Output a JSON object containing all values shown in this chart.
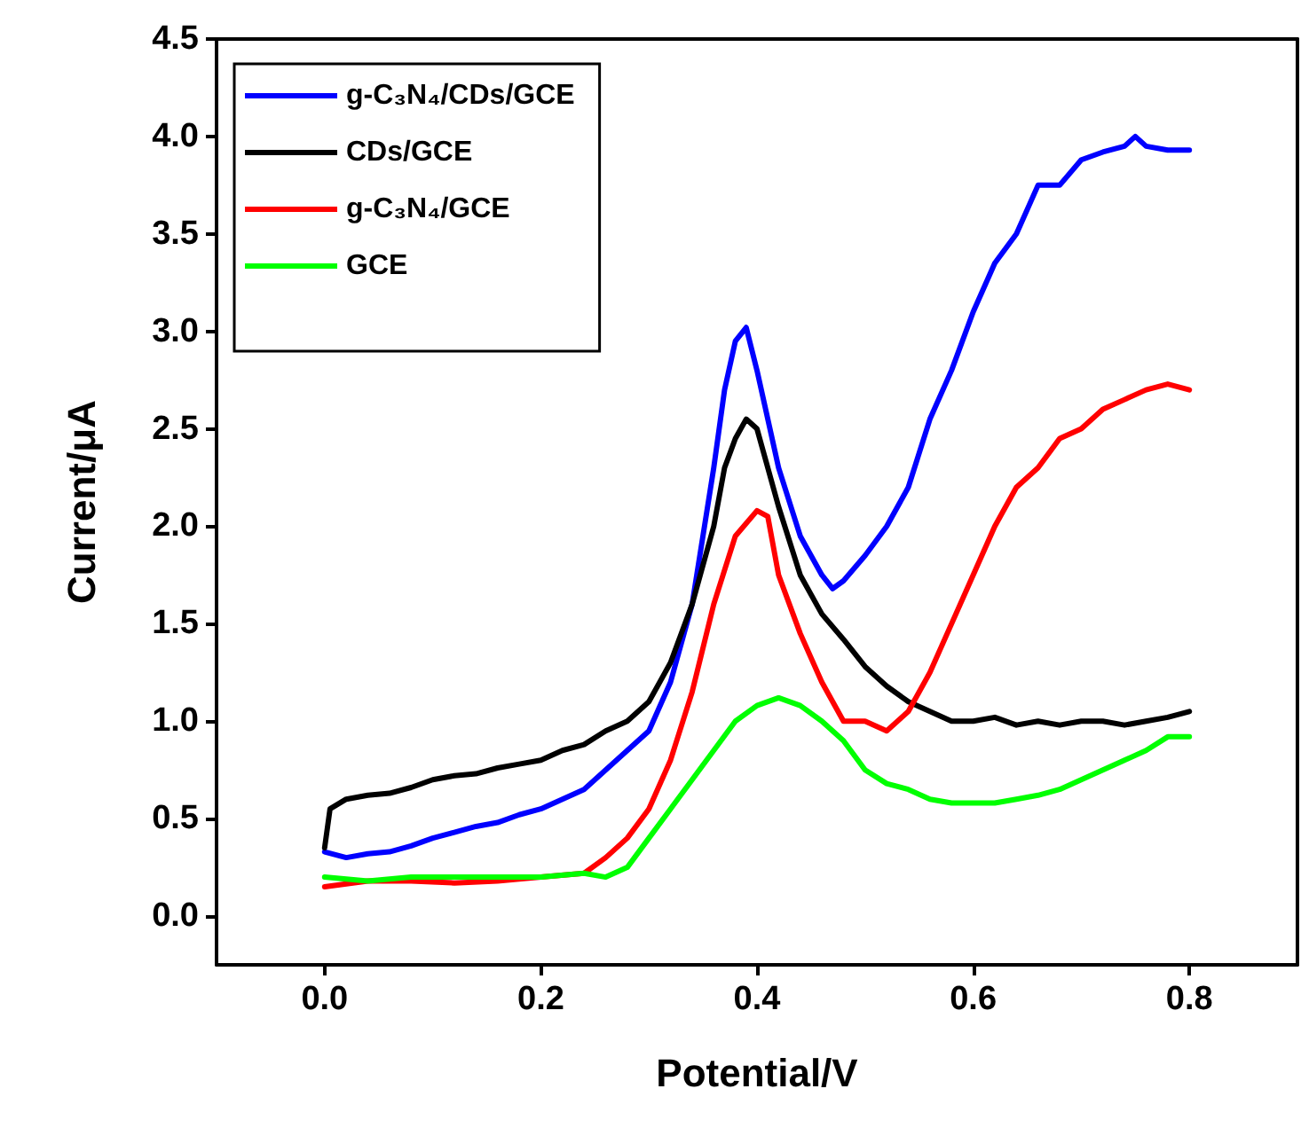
{
  "chart_data": {
    "type": "line",
    "xlabel": "Potential/V",
    "ylabel": "Current/μA",
    "xlim": [
      -0.1,
      0.9
    ],
    "ylim": [
      -0.25,
      4.5
    ],
    "xticks": [
      {
        "value": 0,
        "label": "0.0"
      },
      {
        "value": 0.2,
        "label": "0.2"
      },
      {
        "value": 0.4,
        "label": "0.4"
      },
      {
        "value": 0.6,
        "label": "0.6"
      },
      {
        "value": 0.8,
        "label": "0.8"
      }
    ],
    "yticks": [
      {
        "value": 0,
        "label": "0.0"
      },
      {
        "value": 0.5,
        "label": "0.5"
      },
      {
        "value": 1,
        "label": "1.0"
      },
      {
        "value": 1.5,
        "label": "1.5"
      },
      {
        "value": 2,
        "label": "2.0"
      },
      {
        "value": 2.5,
        "label": "2.5"
      },
      {
        "value": 3,
        "label": "3.0"
      },
      {
        "value": 3.5,
        "label": "3.5"
      },
      {
        "value": 4,
        "label": "4.0"
      },
      {
        "value": 4.5,
        "label": "4.5"
      }
    ],
    "grid": false,
    "legend": "top left",
    "marker": "none",
    "line_style": "solid",
    "series": [
      {
        "name": "g-C₃N₄/CDs/GCE",
        "color": "#0000ff",
        "x": [
          0,
          0.02,
          0.04,
          0.06,
          0.08,
          0.1,
          0.12,
          0.14,
          0.16,
          0.18,
          0.2,
          0.22,
          0.24,
          0.26,
          0.28,
          0.3,
          0.32,
          0.34,
          0.36,
          0.37,
          0.38,
          0.39,
          0.4,
          0.42,
          0.44,
          0.46,
          0.47,
          0.48,
          0.5,
          0.52,
          0.54,
          0.56,
          0.58,
          0.6,
          0.62,
          0.64,
          0.66,
          0.68,
          0.7,
          0.72,
          0.74,
          0.75,
          0.76,
          0.78,
          0.8
        ],
        "values": [
          0.33,
          0.3,
          0.32,
          0.33,
          0.36,
          0.4,
          0.43,
          0.46,
          0.48,
          0.52,
          0.55,
          0.6,
          0.65,
          0.75,
          0.85,
          0.95,
          1.2,
          1.6,
          2.3,
          2.7,
          2.95,
          3.02,
          2.8,
          2.3,
          1.95,
          1.75,
          1.68,
          1.72,
          1.85,
          2.0,
          2.2,
          2.55,
          2.8,
          3.1,
          3.35,
          3.5,
          3.75,
          3.75,
          3.88,
          3.92,
          3.95,
          4.0,
          3.95,
          3.93,
          3.93
        ]
      },
      {
        "name": "CDs/GCE",
        "color": "#000000",
        "x": [
          0,
          0.005,
          0.02,
          0.04,
          0.06,
          0.08,
          0.1,
          0.12,
          0.14,
          0.16,
          0.18,
          0.2,
          0.22,
          0.24,
          0.26,
          0.28,
          0.3,
          0.32,
          0.34,
          0.36,
          0.37,
          0.38,
          0.39,
          0.4,
          0.42,
          0.44,
          0.46,
          0.48,
          0.5,
          0.52,
          0.54,
          0.56,
          0.58,
          0.6,
          0.62,
          0.64,
          0.66,
          0.68,
          0.7,
          0.72,
          0.74,
          0.76,
          0.78,
          0.8
        ],
        "values": [
          0.35,
          0.55,
          0.6,
          0.62,
          0.63,
          0.66,
          0.7,
          0.72,
          0.73,
          0.76,
          0.78,
          0.8,
          0.85,
          0.88,
          0.95,
          1.0,
          1.1,
          1.3,
          1.6,
          2.0,
          2.3,
          2.45,
          2.55,
          2.5,
          2.1,
          1.75,
          1.55,
          1.42,
          1.28,
          1.18,
          1.1,
          1.05,
          1.0,
          1.0,
          1.02,
          0.98,
          1.0,
          0.98,
          1.0,
          1.0,
          0.98,
          1.0,
          1.02,
          1.05
        ]
      },
      {
        "name": "g-C₃N₄/GCE",
        "color": "#ff0000",
        "x": [
          0,
          0.04,
          0.08,
          0.12,
          0.16,
          0.2,
          0.24,
          0.26,
          0.28,
          0.3,
          0.32,
          0.34,
          0.36,
          0.38,
          0.4,
          0.41,
          0.42,
          0.44,
          0.46,
          0.48,
          0.5,
          0.52,
          0.54,
          0.56,
          0.58,
          0.6,
          0.62,
          0.64,
          0.66,
          0.68,
          0.7,
          0.72,
          0.74,
          0.76,
          0.78,
          0.8
        ],
        "values": [
          0.15,
          0.18,
          0.18,
          0.17,
          0.18,
          0.2,
          0.22,
          0.3,
          0.4,
          0.55,
          0.8,
          1.15,
          1.6,
          1.95,
          2.08,
          2.05,
          1.75,
          1.45,
          1.2,
          1.0,
          1.0,
          0.95,
          1.05,
          1.25,
          1.5,
          1.75,
          2.0,
          2.2,
          2.3,
          2.45,
          2.5,
          2.6,
          2.65,
          2.7,
          2.73,
          2.7
        ]
      },
      {
        "name": "GCE",
        "color": "#00ff00",
        "x": [
          0,
          0.04,
          0.08,
          0.12,
          0.16,
          0.2,
          0.24,
          0.26,
          0.28,
          0.3,
          0.32,
          0.34,
          0.36,
          0.38,
          0.4,
          0.42,
          0.44,
          0.46,
          0.48,
          0.5,
          0.52,
          0.54,
          0.56,
          0.58,
          0.6,
          0.62,
          0.64,
          0.66,
          0.68,
          0.7,
          0.72,
          0.74,
          0.76,
          0.78,
          0.8
        ],
        "values": [
          0.2,
          0.18,
          0.2,
          0.2,
          0.2,
          0.2,
          0.22,
          0.2,
          0.25,
          0.4,
          0.55,
          0.7,
          0.85,
          1.0,
          1.08,
          1.12,
          1.08,
          1.0,
          0.9,
          0.75,
          0.68,
          0.65,
          0.6,
          0.58,
          0.58,
          0.58,
          0.6,
          0.62,
          0.65,
          0.7,
          0.75,
          0.8,
          0.85,
          0.92,
          0.92
        ]
      }
    ]
  }
}
